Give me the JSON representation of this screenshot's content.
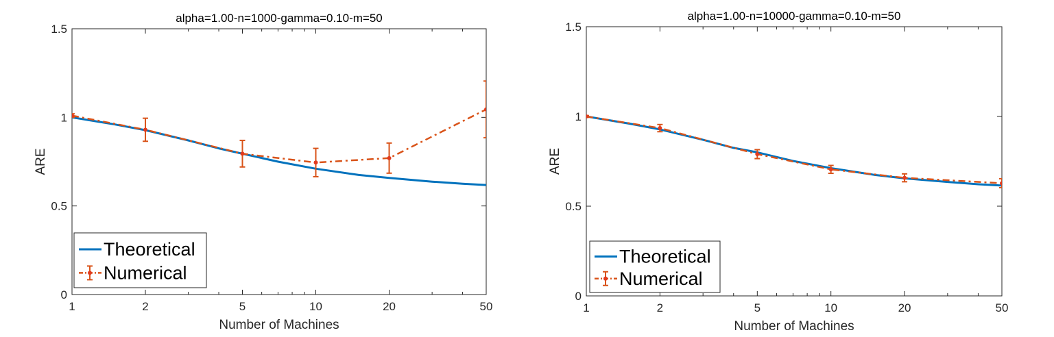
{
  "chart_data": [
    {
      "type": "line",
      "title": "alpha=1.00-n=1000-gamma=0.10-m=50",
      "xlabel": "Number of Machines",
      "ylabel": "ARE",
      "xscale": "log",
      "xlim": [
        1,
        50
      ],
      "ylim": [
        0,
        1.5
      ],
      "xticks": [
        1,
        2,
        5,
        10,
        20,
        50
      ],
      "xtick_labels": [
        "1",
        "2",
        "5",
        "10",
        "20",
        "50"
      ],
      "yticks": [
        0,
        0.5,
        1,
        1.5
      ],
      "ytick_labels": [
        "0",
        "0.5",
        "1",
        "1.5"
      ],
      "grid": false,
      "legend_position": "bottom-left",
      "series": [
        {
          "name": "Theoretical",
          "style": "solid",
          "color": "#0072BD",
          "x": [
            1,
            1.5,
            2,
            3,
            4,
            5,
            7,
            10,
            15,
            20,
            30,
            40,
            50
          ],
          "y": [
            1.0,
            0.96,
            0.928,
            0.87,
            0.825,
            0.795,
            0.75,
            0.71,
            0.675,
            0.658,
            0.637,
            0.625,
            0.618
          ]
        },
        {
          "name": "Numerical",
          "style": "dash-dot",
          "color": "#D95319",
          "point_color": "#E23A1E",
          "x": [
            1,
            2,
            5,
            10,
            20,
            50
          ],
          "y": [
            1.01,
            0.93,
            0.795,
            0.745,
            0.77,
            1.045
          ],
          "err": [
            0.01,
            0.065,
            0.075,
            0.08,
            0.085,
            0.16
          ]
        }
      ]
    },
    {
      "type": "line",
      "title": "alpha=1.00-n=10000-gamma=0.10-m=50",
      "xlabel": "Number of Machines",
      "ylabel": "ARE",
      "xscale": "log",
      "xlim": [
        1,
        50
      ],
      "ylim": [
        0,
        1.5
      ],
      "xticks": [
        1,
        2,
        5,
        10,
        20,
        50
      ],
      "xtick_labels": [
        "1",
        "2",
        "5",
        "10",
        "20",
        "50"
      ],
      "yticks": [
        0,
        0.5,
        1,
        1.5
      ],
      "ytick_labels": [
        "0",
        "0.5",
        "1",
        "1.5"
      ],
      "grid": false,
      "legend_position": "bottom-left",
      "series": [
        {
          "name": "Theoretical",
          "style": "solid",
          "color": "#0072BD",
          "x": [
            1,
            1.5,
            2,
            3,
            4,
            5,
            7,
            10,
            15,
            20,
            30,
            40,
            50
          ],
          "y": [
            1.0,
            0.96,
            0.928,
            0.87,
            0.825,
            0.8,
            0.752,
            0.712,
            0.675,
            0.655,
            0.635,
            0.622,
            0.615
          ]
        },
        {
          "name": "Numerical",
          "style": "dash-dot",
          "color": "#D95319",
          "point_color": "#E23A1E",
          "x": [
            1,
            2,
            5,
            10,
            20,
            50
          ],
          "y": [
            1.0,
            0.935,
            0.79,
            0.705,
            0.658,
            0.628
          ],
          "err": [
            0.005,
            0.02,
            0.025,
            0.022,
            0.022,
            0.025
          ]
        }
      ]
    }
  ]
}
